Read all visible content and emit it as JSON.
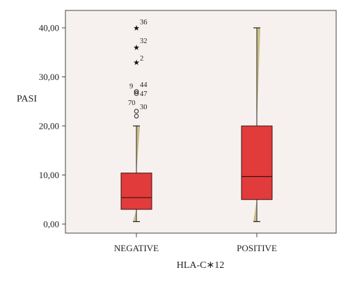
{
  "chart_data": {
    "type": "box",
    "xlabel": "HLA-C∗12",
    "ylabel": "PASI",
    "ylim": [
      0,
      40
    ],
    "yticks": [
      "0,00",
      "10,00",
      "20,00",
      "30,00",
      "40,00"
    ],
    "ytick_values": [
      0,
      10,
      20,
      30,
      40
    ],
    "categories": [
      "NEGATIVE",
      "POSITIVE"
    ],
    "boxes": [
      {
        "category": "NEGATIVE",
        "min": 0.5,
        "q1": 3.0,
        "median": 5.4,
        "q3": 10.4,
        "max": 20.0,
        "outliers": [
          {
            "label": "36",
            "value": 40.0,
            "kind": "extreme"
          },
          {
            "label": "32",
            "value": 36.0,
            "kind": "extreme"
          },
          {
            "label": "2",
            "value": 33.0,
            "kind": "extreme"
          },
          {
            "label": "9",
            "value": 27.0,
            "kind": "outlier"
          },
          {
            "label": "44",
            "value": 27.0,
            "kind": "outlier"
          },
          {
            "label": "47",
            "value": 26.6,
            "kind": "outlier"
          },
          {
            "label": "70",
            "value": 23.0,
            "kind": "outlier"
          },
          {
            "label": "30",
            "value": 22.0,
            "kind": "outlier"
          }
        ]
      },
      {
        "category": "POSITIVE",
        "min": 0.5,
        "q1": 5.0,
        "median": 9.7,
        "q3": 20.0,
        "max": 40.0,
        "outliers": []
      }
    ],
    "colors": {
      "box": "#e23b3b",
      "box_edge": "#3a1010",
      "median": "#3a1010",
      "plot_bg": "#f6f1ee",
      "whisker_wedge": "#c9be88"
    },
    "grid": false,
    "legend": "none"
  }
}
